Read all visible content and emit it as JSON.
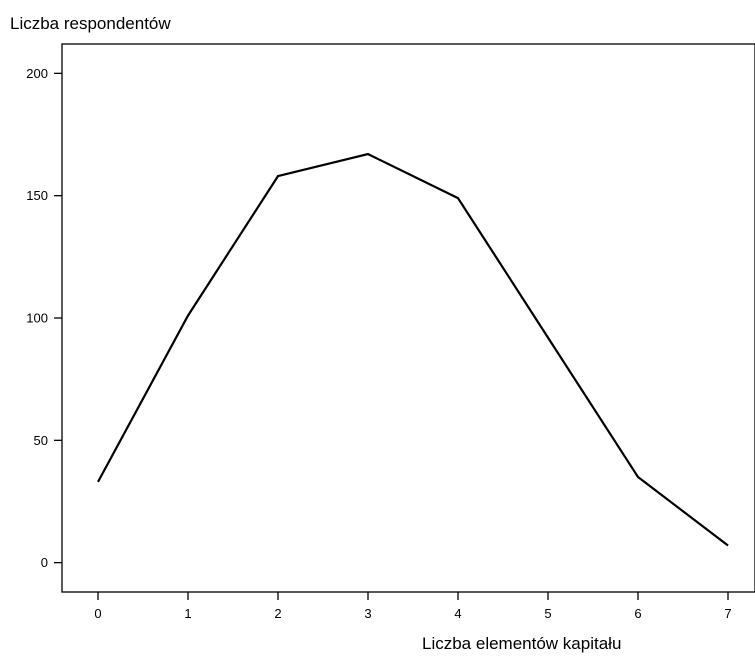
{
  "chart_data": {
    "type": "line",
    "title": "",
    "xlabel": "Liczba elementów kapitału",
    "ylabel": "Liczba respondentów",
    "x": [
      0,
      1,
      2,
      3,
      4,
      5,
      6,
      7
    ],
    "series": [
      {
        "values": [
          33,
          101,
          158,
          167,
          149,
          92,
          35,
          7
        ]
      }
    ],
    "xlim": [
      -0.4,
      7.3
    ],
    "ylim": [
      -12,
      212
    ],
    "x_ticks": [
      0,
      1,
      2,
      3,
      4,
      5,
      6,
      7
    ],
    "y_ticks": [
      0,
      50,
      100,
      150,
      200
    ],
    "grid": false,
    "legend": "none",
    "line_color": "#000000"
  }
}
